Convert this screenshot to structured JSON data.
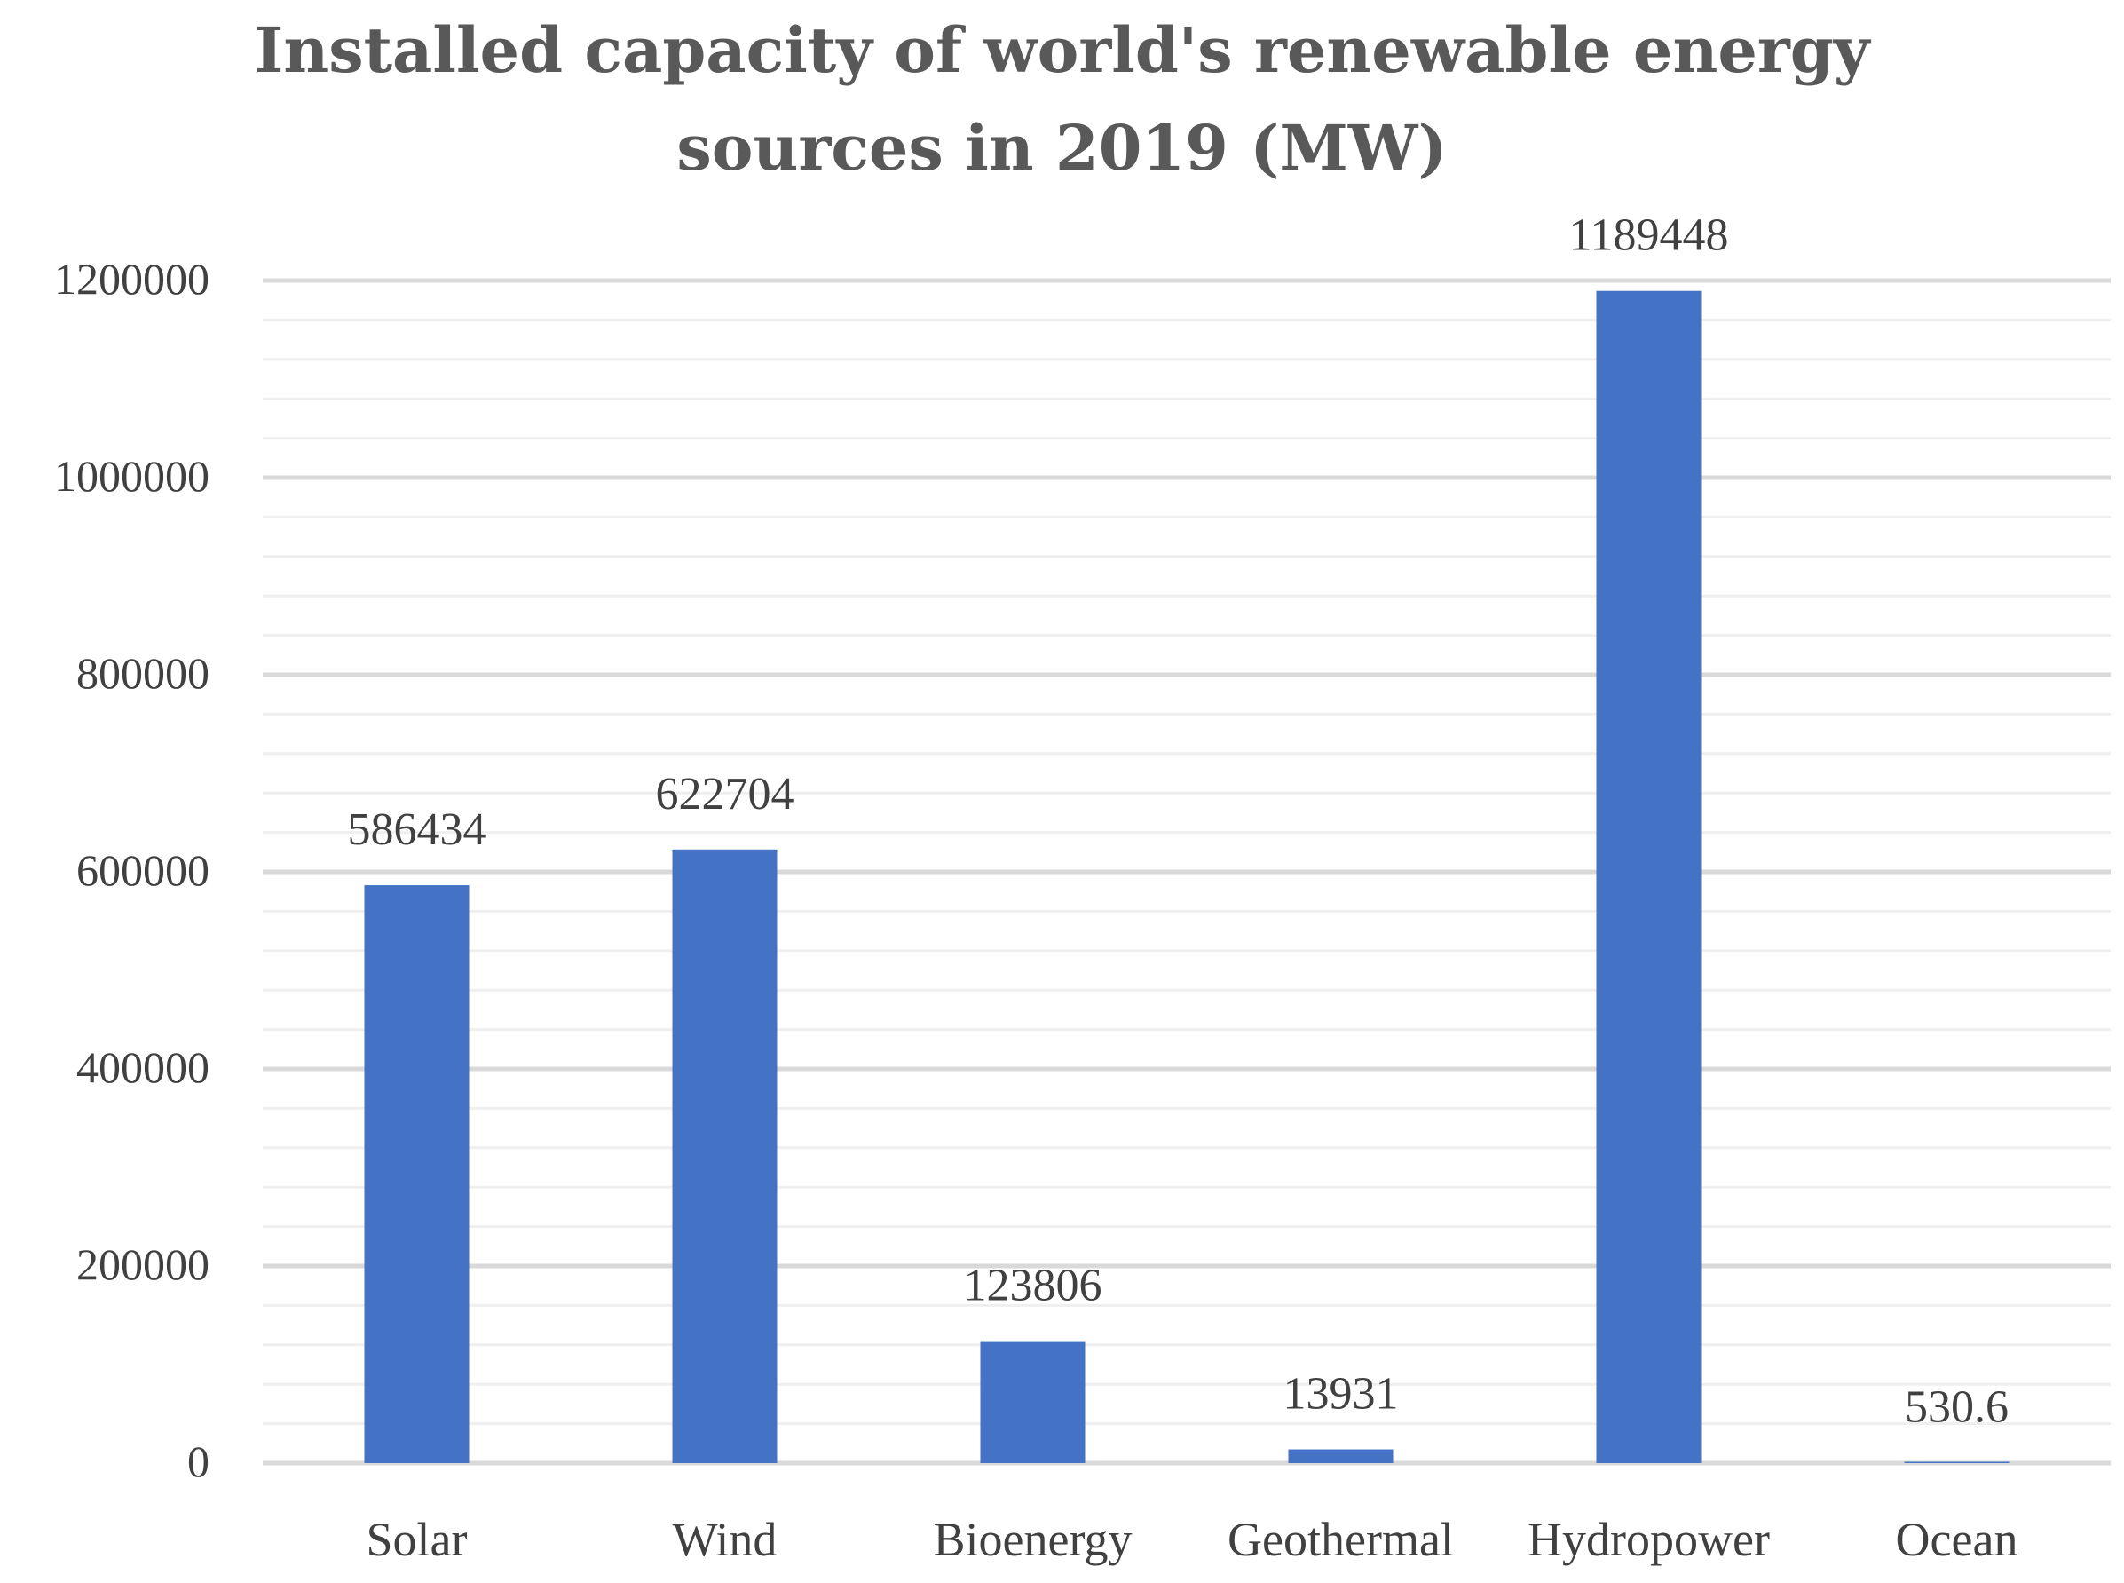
{
  "chart_data": {
    "type": "bar",
    "title_lines": [
      "Installed capacity of world's renewable energy",
      "sources in 2019 (MW)"
    ],
    "categories": [
      "Solar",
      "Wind",
      "Bioenergy",
      "Geothermal",
      "Hydropower",
      "Ocean"
    ],
    "values": [
      586434,
      622704,
      123806,
      13931,
      1189448,
      530.6
    ],
    "value_labels": [
      "586434",
      "622704",
      "123806",
      "13931",
      "1189448",
      "530.6"
    ],
    "ylim": [
      0,
      1200000
    ],
    "yticks": [
      0,
      200000,
      400000,
      600000,
      800000,
      1000000,
      1200000
    ],
    "ytick_labels": [
      "0",
      "200000",
      "400000",
      "600000",
      "800000",
      "1000000",
      "1200000"
    ],
    "xlabel": "",
    "ylabel": "",
    "grid": true,
    "bar_color": "#4472C4",
    "major_grid_color": "#D9D9D9",
    "minor_grid_color": "#EFEFEF",
    "text_color": "#404040"
  }
}
